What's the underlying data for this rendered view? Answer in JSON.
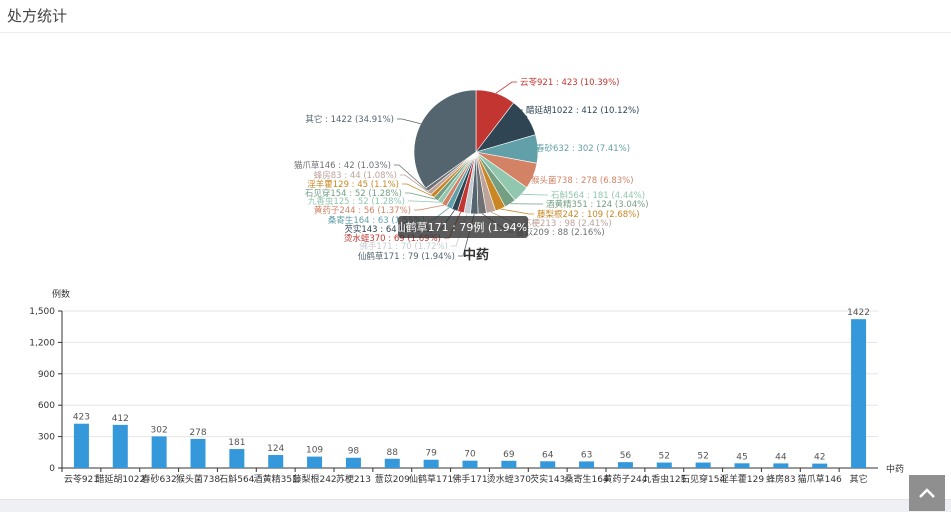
{
  "page": {
    "title": "处方统计"
  },
  "colors": {
    "bar": "#3498db",
    "pie": [
      "#c23531",
      "#2f4554",
      "#61a0a8",
      "#d48265",
      "#91c7ae",
      "#749f83",
      "#ca8622",
      "#bda29a",
      "#6e7074",
      "#546570",
      "#c4ccd3",
      "#c23531",
      "#2f4554",
      "#61a0a8",
      "#d48265",
      "#91c7ae",
      "#749f83",
      "#ca8622",
      "#bda29a",
      "#6e7074",
      "#546570"
    ]
  },
  "chart_data": [
    {
      "type": "pie",
      "title": "中药",
      "slices": [
        {
          "name": "云苓921",
          "value": 423,
          "percent": "10.39%"
        },
        {
          "name": "醋延胡1022",
          "value": 412,
          "percent": "10.12%"
        },
        {
          "name": "春砂632",
          "value": 302,
          "percent": "7.41%"
        },
        {
          "name": "猴头菌738",
          "value": 278,
          "percent": "6.83%"
        },
        {
          "name": "石斛564",
          "value": 181,
          "percent": "4.44%"
        },
        {
          "name": "酒黄精351",
          "value": 124,
          "percent": "3.04%"
        },
        {
          "name": "藤梨根242",
          "value": 109,
          "percent": "2.68%"
        },
        {
          "name": "苏梗213",
          "value": 98,
          "percent": "2.41%"
        },
        {
          "name": "薏苡209",
          "value": 88,
          "percent": "2.16%"
        },
        {
          "name": "仙鹤草171",
          "value": 79,
          "percent": "1.94%"
        },
        {
          "name": "佛手171",
          "value": 70,
          "percent": "1.72%"
        },
        {
          "name": "烫水蛭370",
          "value": 69,
          "percent": "1.69%"
        },
        {
          "name": "芡实143",
          "value": 64,
          "percent": "1.57%"
        },
        {
          "name": "桑寄生164",
          "value": 63,
          "percent": "1.55%"
        },
        {
          "name": "黄药子244",
          "value": 56,
          "percent": "1.37%"
        },
        {
          "name": "九香虫125",
          "value": 52,
          "percent": "1.28%"
        },
        {
          "name": "石见穿154",
          "value": 52,
          "percent": "1.28%"
        },
        {
          "name": "淫羊藿129",
          "value": 45,
          "percent": "1.1%"
        },
        {
          "name": "蜂房83",
          "value": 44,
          "percent": "1.08%"
        },
        {
          "name": "猫爪草146",
          "value": 42,
          "percent": "1.03%"
        },
        {
          "name": "其它",
          "value": 1422,
          "percent": "34.91%"
        }
      ],
      "tooltip": "仙鹤草171 : 79例 (1.94%)"
    },
    {
      "type": "bar",
      "ylabel": "例数",
      "xlabel": "中药",
      "ylim": [
        0,
        1500
      ],
      "yticks": [
        "0",
        "300",
        "600",
        "900",
        "1,200",
        "1,500"
      ],
      "categories": [
        "云苓921",
        "醋延胡1022",
        "春砂632",
        "猴头菌738",
        "石斛564",
        "酒黄精351",
        "藤梨根242",
        "苏梗213",
        "薏苡209",
        "仙鹤草171",
        "佛手171",
        "烫水蛭370",
        "芡实143",
        "桑寄生164",
        "黄药子244",
        "九香虫125",
        "石见穿154",
        "淫羊藿129",
        "蜂房83",
        "猫爪草146",
        "其它"
      ],
      "values": [
        423,
        412,
        302,
        278,
        181,
        124,
        109,
        98,
        88,
        79,
        70,
        69,
        64,
        63,
        56,
        52,
        52,
        45,
        44,
        42,
        1422
      ],
      "grid": true
    }
  ]
}
